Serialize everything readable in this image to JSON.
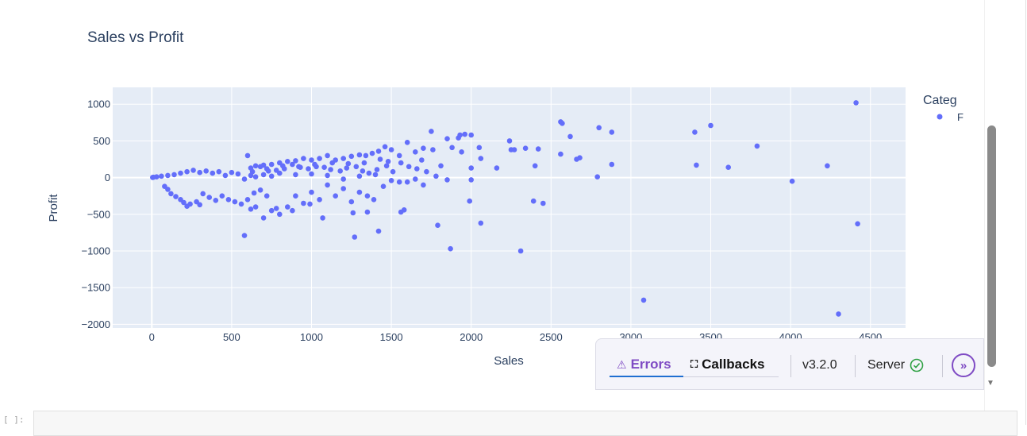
{
  "chart_data": {
    "type": "scatter",
    "title": "Sales vs Profit",
    "xlabel": "Sales",
    "ylabel": "Profit",
    "xlim": [
      -245,
      4720
    ],
    "ylim": [
      -2050,
      1230
    ],
    "x_ticks": [
      0,
      500,
      1000,
      1500,
      2000,
      2500,
      3000,
      3500,
      4000,
      4500
    ],
    "y_ticks": [
      1000,
      500,
      0,
      -500,
      -1000,
      -1500,
      -2000
    ],
    "x_tick_labels": [
      "0",
      "500",
      "1000",
      "1500",
      "2000",
      "2500",
      "3000",
      "3500",
      "4000",
      "4500"
    ],
    "y_tick_labels": [
      "1000",
      "500",
      "0",
      "−500",
      "−1000",
      "−1500",
      "−2000"
    ],
    "grid": true,
    "legend": {
      "title": "Categ",
      "position": "right",
      "entries": [
        "F"
      ]
    },
    "series": [
      {
        "name": "F",
        "color": "#636efa",
        "points": [
          [
            1750,
            630
          ],
          [
            1930,
            580
          ],
          [
            1960,
            590
          ],
          [
            2000,
            580
          ],
          [
            1850,
            530
          ],
          [
            1920,
            540
          ],
          [
            1880,
            410
          ],
          [
            1760,
            380
          ],
          [
            1940,
            350
          ],
          [
            2050,
            410
          ],
          [
            2060,
            260
          ],
          [
            2240,
            500
          ],
          [
            2250,
            380
          ],
          [
            2270,
            380
          ],
          [
            2340,
            400
          ],
          [
            2420,
            390
          ],
          [
            2560,
            760
          ],
          [
            2570,
            740
          ],
          [
            2620,
            560
          ],
          [
            2560,
            320
          ],
          [
            2660,
            250
          ],
          [
            2680,
            270
          ],
          [
            2880,
            620
          ],
          [
            2800,
            680
          ],
          [
            2880,
            180
          ],
          [
            2790,
            10
          ],
          [
            2400,
            160
          ],
          [
            2160,
            130
          ],
          [
            2000,
            130
          ],
          [
            1810,
            160
          ],
          [
            2000,
            -30
          ],
          [
            1990,
            -320
          ],
          [
            2060,
            -620
          ],
          [
            1870,
            -970
          ],
          [
            2310,
            -1000
          ],
          [
            1790,
            -650
          ],
          [
            2390,
            -320
          ],
          [
            2450,
            -350
          ],
          [
            1580,
            -440
          ],
          [
            1560,
            -470
          ],
          [
            1420,
            -730
          ],
          [
            1270,
            -810
          ],
          [
            1350,
            -470
          ],
          [
            1260,
            -480
          ],
          [
            1390,
            -300
          ],
          [
            580,
            -790
          ],
          [
            3080,
            -1670
          ],
          [
            3400,
            620
          ],
          [
            3500,
            710
          ],
          [
            3410,
            170
          ],
          [
            3610,
            140
          ],
          [
            3790,
            430
          ],
          [
            4010,
            -50
          ],
          [
            4230,
            160
          ],
          [
            4410,
            1020
          ],
          [
            4420,
            -630
          ],
          [
            4300,
            -1860
          ],
          [
            1600,
            480
          ],
          [
            1700,
            400
          ],
          [
            1650,
            350
          ],
          [
            1550,
            300
          ],
          [
            1500,
            380
          ],
          [
            1460,
            420
          ],
          [
            1420,
            360
          ],
          [
            1380,
            330
          ],
          [
            1340,
            300
          ],
          [
            1300,
            310
          ],
          [
            1250,
            290
          ],
          [
            1200,
            260
          ],
          [
            1150,
            240
          ],
          [
            1100,
            300
          ],
          [
            1050,
            260
          ],
          [
            1000,
            240
          ],
          [
            950,
            260
          ],
          [
            900,
            230
          ],
          [
            850,
            220
          ],
          [
            800,
            200
          ],
          [
            750,
            180
          ],
          [
            700,
            170
          ],
          [
            650,
            160
          ],
          [
            600,
            300
          ],
          [
            620,
            130
          ],
          [
            680,
            150
          ],
          [
            720,
            120
          ],
          [
            780,
            100
          ],
          [
            820,
            160
          ],
          [
            880,
            180
          ],
          [
            920,
            150
          ],
          [
            980,
            120
          ],
          [
            1020,
            180
          ],
          [
            1080,
            140
          ],
          [
            1120,
            110
          ],
          [
            1180,
            90
          ],
          [
            1220,
            130
          ],
          [
            1280,
            150
          ],
          [
            1320,
            90
          ],
          [
            1360,
            60
          ],
          [
            1410,
            110
          ],
          [
            1470,
            160
          ],
          [
            1510,
            80
          ],
          [
            1560,
            200
          ],
          [
            1610,
            150
          ],
          [
            1660,
            120
          ],
          [
            1690,
            240
          ],
          [
            1720,
            80
          ],
          [
            1480,
            220
          ],
          [
            1430,
            250
          ],
          [
            1330,
            200
          ],
          [
            1230,
            190
          ],
          [
            1130,
            200
          ],
          [
            1030,
            150
          ],
          [
            930,
            140
          ],
          [
            830,
            120
          ],
          [
            730,
            90
          ],
          [
            630,
            80
          ],
          [
            1100,
            -100
          ],
          [
            1200,
            -150
          ],
          [
            1300,
            -200
          ],
          [
            1150,
            -250
          ],
          [
            1050,
            -300
          ],
          [
            950,
            -350
          ],
          [
            850,
            -400
          ],
          [
            800,
            -500
          ],
          [
            750,
            -450
          ],
          [
            700,
            -550
          ],
          [
            650,
            -400
          ],
          [
            620,
            -430
          ],
          [
            900,
            -250
          ],
          [
            1000,
            -200
          ],
          [
            1250,
            -330
          ],
          [
            1350,
            -250
          ],
          [
            1450,
            -120
          ],
          [
            1550,
            -60
          ],
          [
            1650,
            -20
          ],
          [
            1700,
            -100
          ],
          [
            1780,
            20
          ],
          [
            1850,
            -30
          ],
          [
            880,
            -450
          ],
          [
            990,
            -360
          ],
          [
            1070,
            -550
          ],
          [
            780,
            -420
          ],
          [
            720,
            -250
          ],
          [
            680,
            -170
          ],
          [
            640,
            -210
          ],
          [
            600,
            -300
          ],
          [
            560,
            -360
          ],
          [
            520,
            -330
          ],
          [
            480,
            -300
          ],
          [
            440,
            -250
          ],
          [
            400,
            -310
          ],
          [
            360,
            -270
          ],
          [
            320,
            -220
          ],
          [
            300,
            -370
          ],
          [
            280,
            -330
          ],
          [
            240,
            -360
          ],
          [
            220,
            -390
          ],
          [
            200,
            -340
          ],
          [
            180,
            -300
          ],
          [
            150,
            -260
          ],
          [
            120,
            -220
          ],
          [
            100,
            -160
          ],
          [
            80,
            -120
          ],
          [
            1600,
            -60
          ],
          [
            1500,
            -40
          ],
          [
            1400,
            40
          ],
          [
            1300,
            20
          ],
          [
            1200,
            -20
          ],
          [
            1100,
            30
          ],
          [
            1000,
            50
          ],
          [
            900,
            40
          ],
          [
            800,
            60
          ],
          [
            750,
            20
          ],
          [
            700,
            40
          ],
          [
            650,
            10
          ],
          [
            620,
            30
          ],
          [
            580,
            -20
          ],
          [
            540,
            50
          ],
          [
            500,
            70
          ],
          [
            460,
            30
          ],
          [
            420,
            80
          ],
          [
            380,
            60
          ],
          [
            340,
            90
          ],
          [
            300,
            70
          ],
          [
            260,
            100
          ],
          [
            220,
            80
          ],
          [
            180,
            60
          ],
          [
            140,
            40
          ],
          [
            100,
            30
          ],
          [
            60,
            20
          ],
          [
            30,
            10
          ],
          [
            10,
            5
          ],
          [
            5,
            2
          ]
        ]
      }
    ]
  },
  "debug_menu": {
    "errors_label": "Errors",
    "callbacks_label": "Callbacks",
    "version": "v3.2.0",
    "server_label": "Server"
  },
  "notebook": {
    "prompt": "[ ]:"
  }
}
